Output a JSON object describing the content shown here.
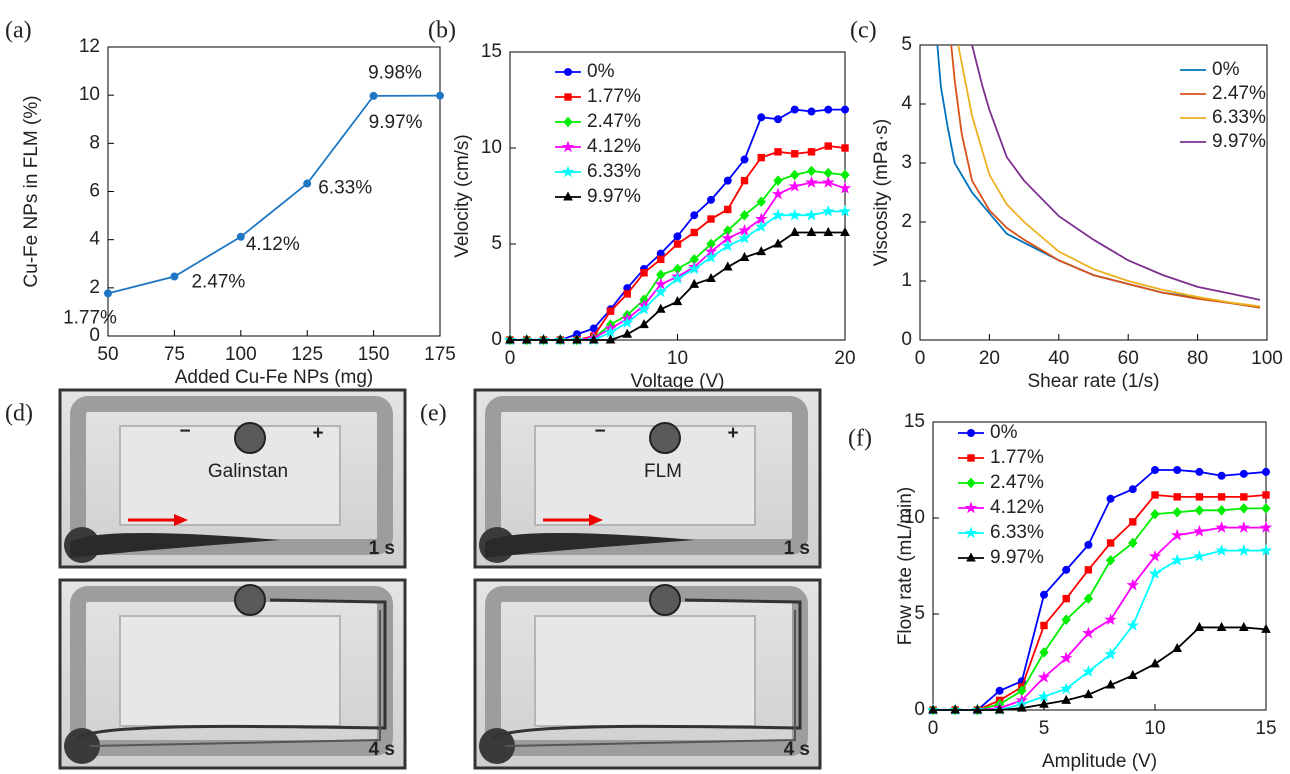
{
  "chart_data": [
    {
      "type": "line",
      "panel": "(a)",
      "xlabel": "Added Cu-Fe NPs (mg)",
      "ylabel": "Cu-Fe NPs in FLM (%)",
      "x": [
        50,
        75,
        100,
        125,
        150,
        175
      ],
      "values": [
        1.77,
        2.47,
        4.12,
        6.33,
        9.97,
        9.98
      ],
      "value_labels": [
        "1.77%",
        "2.47%",
        "4.12%",
        "6.33%",
        "9.97%",
        "9.98%"
      ],
      "color": "#1f77c4",
      "marker": "circle",
      "xlim": [
        50,
        175
      ],
      "xticks": [
        50,
        75,
        100,
        125,
        150,
        175
      ],
      "ylim": [
        0,
        12
      ],
      "yticks": [
        0,
        2,
        4,
        6,
        8,
        10,
        12
      ]
    },
    {
      "type": "line",
      "panel": "(b)",
      "xlabel": "Voltage (V)",
      "ylabel": "Velocity (cm/s)",
      "x": [
        0,
        1,
        2,
        3,
        4,
        5,
        6,
        7,
        8,
        9,
        10,
        11,
        12,
        13,
        14,
        15,
        16,
        17,
        18,
        19,
        20
      ],
      "series": [
        {
          "name": "0%",
          "color": "#0000ff",
          "marker": "circle",
          "values": [
            0,
            0,
            0,
            0,
            0.3,
            0.6,
            1.6,
            2.7,
            3.7,
            4.5,
            5.4,
            6.5,
            7.3,
            8.3,
            9.4,
            11.6,
            11.5,
            12,
            11.9,
            12,
            12
          ]
        },
        {
          "name": "1.77%",
          "color": "#ff0000",
          "marker": "square",
          "values": [
            0,
            0,
            0,
            0,
            0,
            0.2,
            1.5,
            2.4,
            3.5,
            4.2,
            5,
            5.6,
            6.3,
            6.8,
            8.3,
            9.5,
            9.8,
            9.7,
            9.8,
            10.1,
            10
          ]
        },
        {
          "name": "2.47%",
          "color": "#00ee00",
          "marker": "diamond",
          "values": [
            0,
            0,
            0,
            0,
            0,
            0.1,
            0.8,
            1.3,
            2.1,
            3.4,
            3.7,
            4.2,
            5,
            5.7,
            6.5,
            7.2,
            8.3,
            8.6,
            8.8,
            8.7,
            8.6
          ]
        },
        {
          "name": "4.12%",
          "color": "#ff00ff",
          "marker": "star",
          "values": [
            0,
            0,
            0,
            0,
            0,
            0.1,
            0.6,
            1.1,
            1.8,
            2.9,
            3.3,
            3.8,
            4.6,
            5.3,
            5.7,
            6.3,
            7.6,
            8,
            8.2,
            8.2,
            7.9
          ]
        },
        {
          "name": "6.33%",
          "color": "#00ffff",
          "marker": "star",
          "values": [
            0,
            0,
            0,
            0,
            0,
            0,
            0.4,
            0.9,
            1.6,
            2.5,
            3.2,
            3.7,
            4.3,
            4.9,
            5.3,
            5.9,
            6.5,
            6.5,
            6.5,
            6.7,
            6.7
          ]
        },
        {
          "name": "9.97%",
          "color": "#000000",
          "marker": "triangle",
          "values": [
            0,
            0,
            0,
            0,
            0,
            0,
            0,
            0.3,
            0.8,
            1.6,
            2,
            2.9,
            3.2,
            3.8,
            4.3,
            4.6,
            5,
            5.6,
            5.6,
            5.6,
            5.6
          ]
        }
      ],
      "xlim": [
        0,
        20
      ],
      "xticks": [
        0,
        10,
        20
      ],
      "ylim": [
        0,
        15
      ],
      "yticks": [
        0,
        5,
        10,
        15
      ],
      "legend": "upper left"
    },
    {
      "type": "line",
      "panel": "(c)",
      "xlabel": "Shear rate (1/s)",
      "ylabel": "Viscosity (mPa·s)",
      "series": [
        {
          "name": "0%",
          "color": "#0072bd",
          "x": [
            5,
            6,
            8,
            10,
            15,
            20,
            25,
            30,
            40,
            50,
            60,
            70,
            80,
            90,
            98
          ],
          "values": [
            5,
            4.3,
            3.6,
            3.0,
            2.5,
            2.15,
            1.8,
            1.65,
            1.35,
            1.1,
            0.95,
            0.8,
            0.72,
            0.62,
            0.55
          ]
        },
        {
          "name": "2.47%",
          "color": "#d95319",
          "x": [
            9,
            10,
            12,
            15,
            20,
            25,
            30,
            40,
            50,
            60,
            70,
            80,
            90,
            98
          ],
          "values": [
            5,
            4.4,
            3.5,
            2.7,
            2.2,
            1.9,
            1.7,
            1.35,
            1.1,
            0.95,
            0.8,
            0.7,
            0.62,
            0.55
          ]
        },
        {
          "name": "6.33%",
          "color": "#edb120",
          "x": [
            11,
            13,
            15,
            20,
            25,
            30,
            40,
            50,
            60,
            70,
            80,
            90,
            98
          ],
          "values": [
            5,
            4.4,
            3.8,
            2.8,
            2.3,
            2.0,
            1.5,
            1.2,
            1.0,
            0.85,
            0.73,
            0.63,
            0.57
          ]
        },
        {
          "name": "9.97%",
          "color": "#7e2f8e",
          "x": [
            15,
            18,
            20,
            25,
            30,
            40,
            50,
            60,
            70,
            80,
            90,
            98
          ],
          "values": [
            5,
            4.3,
            3.9,
            3.1,
            2.7,
            2.1,
            1.7,
            1.35,
            1.1,
            0.9,
            0.78,
            0.68
          ]
        }
      ],
      "xlim": [
        0,
        100
      ],
      "xticks": [
        0,
        20,
        40,
        60,
        80,
        100
      ],
      "ylim": [
        0,
        5
      ],
      "yticks": [
        0,
        1,
        2,
        3,
        4,
        5
      ],
      "legend": "upper right"
    },
    {
      "type": "line",
      "panel": "(f)",
      "xlabel": "Amplitude (V)",
      "ylabel": "Flow rate (mL/min)",
      "x": [
        0,
        1,
        2,
        3,
        4,
        5,
        6,
        7,
        8,
        9,
        10,
        11,
        12,
        13,
        14,
        15
      ],
      "series": [
        {
          "name": "0%",
          "color": "#0000ff",
          "marker": "circle",
          "values": [
            0,
            0,
            0,
            1,
            1.5,
            6,
            7.3,
            8.6,
            11,
            11.5,
            12.5,
            12.5,
            12.4,
            12.2,
            12.3,
            12.4
          ]
        },
        {
          "name": "1.77%",
          "color": "#ff0000",
          "marker": "square",
          "values": [
            0,
            0,
            0,
            0.5,
            1.2,
            4.4,
            5.8,
            7.3,
            8.7,
            9.8,
            11.2,
            11.1,
            11.1,
            11.1,
            11.1,
            11.2
          ]
        },
        {
          "name": "2.47%",
          "color": "#00ee00",
          "marker": "diamond",
          "values": [
            0,
            0,
            0,
            0.3,
            1,
            3,
            4.7,
            5.8,
            7.8,
            8.7,
            10.2,
            10.3,
            10.4,
            10.4,
            10.5,
            10.5
          ]
        },
        {
          "name": "4.12%",
          "color": "#ff00ff",
          "marker": "star",
          "values": [
            0,
            0,
            0,
            0.1,
            0.5,
            1.7,
            2.7,
            4,
            4.7,
            6.5,
            8,
            9.1,
            9.3,
            9.5,
            9.5,
            9.5
          ]
        },
        {
          "name": "6.33%",
          "color": "#00ffff",
          "marker": "star",
          "values": [
            0,
            0,
            0,
            0,
            0.3,
            0.7,
            1.1,
            2,
            2.9,
            4.4,
            7.1,
            7.8,
            8,
            8.3,
            8.3,
            8.3
          ]
        },
        {
          "name": "9.97%",
          "color": "#000000",
          "marker": "triangle",
          "values": [
            0,
            0,
            0,
            0,
            0.1,
            0.3,
            0.5,
            0.8,
            1.3,
            1.8,
            2.4,
            3.2,
            4.3,
            4.3,
            4.3,
            4.2
          ]
        }
      ],
      "xlim": [
        0,
        15
      ],
      "xticks": [
        0,
        5,
        10,
        15
      ],
      "ylim": [
        0,
        15
      ],
      "yticks": [
        0,
        5,
        10,
        15
      ],
      "legend": "upper left"
    }
  ],
  "photos": [
    {
      "panel": "(d)",
      "label": "Galinstan",
      "minus": "−",
      "plus": "+",
      "frames": [
        "1 s",
        "4 s"
      ]
    },
    {
      "panel": "(e)",
      "label": "FLM",
      "minus": "−",
      "plus": "+",
      "frames": [
        "1 s",
        "4 s"
      ]
    }
  ]
}
